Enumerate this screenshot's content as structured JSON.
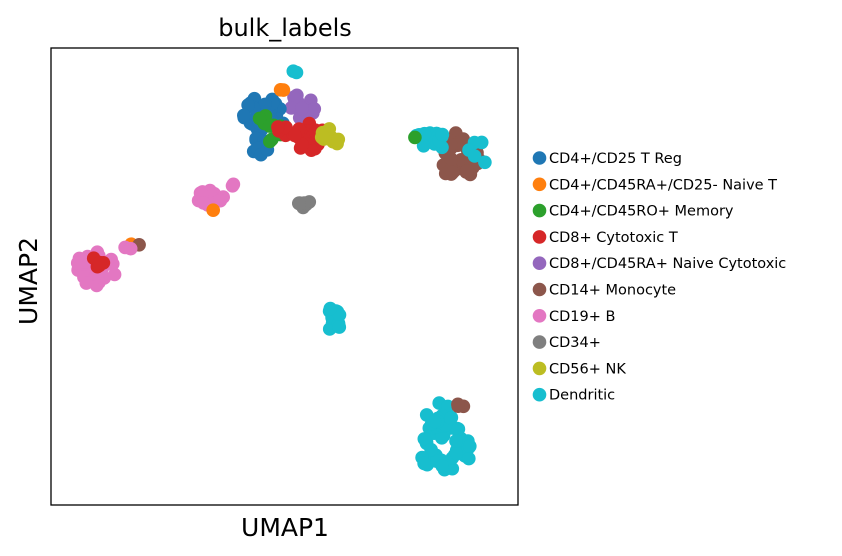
{
  "chart_data": {
    "type": "scatter",
    "title": "bulk_labels",
    "xlabel": "UMAP1",
    "ylabel": "UMAP2",
    "xlim": [
      0,
      100
    ],
    "ylim": [
      0,
      100
    ],
    "ticks": "none",
    "grid": false,
    "legend_position": "right",
    "categories": [
      {
        "name": "CD4+/CD25 T Reg",
        "color": "#1f77b4"
      },
      {
        "name": "CD4+/CD45RA+/CD25- Naive T",
        "color": "#ff7f0e"
      },
      {
        "name": "CD4+/CD45RO+ Memory",
        "color": "#2ca02c"
      },
      {
        "name": "CD8+ Cytotoxic T",
        "color": "#d62728"
      },
      {
        "name": "CD8+/CD45RA+ Naive Cytotoxic",
        "color": "#9467bd"
      },
      {
        "name": "CD14+ Monocyte",
        "color": "#8c564b"
      },
      {
        "name": "CD19+ B",
        "color": "#e377c2"
      },
      {
        "name": "CD34+",
        "color": "#7f7f7f"
      },
      {
        "name": "CD56+ NK",
        "color": "#bcbd22"
      },
      {
        "name": "Dendritic",
        "color": "#17becf"
      }
    ],
    "clusters": [
      {
        "category": 4,
        "cx": 53,
        "cy": 87,
        "rx": 3.5,
        "ry": 3.0,
        "n": 18
      },
      {
        "category": 0,
        "cx": 45.5,
        "cy": 85.5,
        "rx": 5.0,
        "ry": 4.5,
        "n": 26
      },
      {
        "category": 0,
        "cx": 44.5,
        "cy": 78.5,
        "rx": 2.5,
        "ry": 2.2,
        "n": 12
      },
      {
        "category": 2,
        "cx": 46.5,
        "cy": 82.5,
        "rx": 4.0,
        "ry": 3.0,
        "n": 10
      },
      {
        "category": 3,
        "cx": 55.5,
        "cy": 80.5,
        "rx": 3.0,
        "ry": 3.5,
        "n": 18
      },
      {
        "category": 3,
        "cx": 50.5,
        "cy": 82.0,
        "rx": 3.0,
        "ry": 2.0,
        "n": 8
      },
      {
        "category": 8,
        "cx": 60.0,
        "cy": 81.0,
        "rx": 2.2,
        "ry": 2.8,
        "n": 12
      },
      {
        "category": 1,
        "cx": 49.5,
        "cy": 91.0,
        "rx": 0.8,
        "ry": 0.8,
        "n": 2
      },
      {
        "category": 9,
        "cx": 52.0,
        "cy": 94.5,
        "rx": 0.8,
        "ry": 0.5,
        "n": 2
      },
      {
        "category": 7,
        "cx": 54.2,
        "cy": 66.0,
        "rx": 1.2,
        "ry": 1.0,
        "n": 7
      },
      {
        "category": 6,
        "cx": 34.0,
        "cy": 67.0,
        "rx": 3.0,
        "ry": 2.0,
        "n": 16
      },
      {
        "category": 6,
        "cx": 39.0,
        "cy": 70.0,
        "rx": 0.8,
        "ry": 0.8,
        "n": 2
      },
      {
        "category": 1,
        "cx": 34.5,
        "cy": 64.5,
        "rx": 0.5,
        "ry": 0.5,
        "n": 1
      },
      {
        "category": 6,
        "cx": 9.5,
        "cy": 52.0,
        "rx": 4.5,
        "ry": 4.0,
        "n": 30
      },
      {
        "category": 3,
        "cx": 10.0,
        "cy": 53.5,
        "rx": 1.5,
        "ry": 1.5,
        "n": 5
      },
      {
        "category": 1,
        "cx": 17.5,
        "cy": 57.0,
        "rx": 0.4,
        "ry": 0.4,
        "n": 1
      },
      {
        "category": 5,
        "cx": 18.8,
        "cy": 56.8,
        "rx": 0.4,
        "ry": 0.4,
        "n": 1
      },
      {
        "category": 6,
        "cx": 16.5,
        "cy": 56.5,
        "rx": 0.8,
        "ry": 0.6,
        "n": 2
      },
      {
        "category": 9,
        "cx": 60.5,
        "cy": 40.5,
        "rx": 1.5,
        "ry": 3.5,
        "n": 12
      },
      {
        "category": 5,
        "cx": 87.0,
        "cy": 76.0,
        "rx": 5.0,
        "ry": 5.5,
        "n": 40
      },
      {
        "category": 9,
        "cx": 81.0,
        "cy": 79.0,
        "rx": 3.5,
        "ry": 4.0,
        "n": 14
      },
      {
        "category": 9,
        "cx": 91.5,
        "cy": 77.0,
        "rx": 2.5,
        "ry": 2.5,
        "n": 5
      },
      {
        "category": 2,
        "cx": 77.5,
        "cy": 80.5,
        "rx": 0.5,
        "ry": 0.5,
        "n": 1
      },
      {
        "category": 9,
        "cx": 84.0,
        "cy": 12.5,
        "rx": 6.5,
        "ry": 5.0,
        "n": 45
      },
      {
        "category": 9,
        "cx": 83.0,
        "cy": 20.0,
        "rx": 3.0,
        "ry": 3.0,
        "n": 12
      },
      {
        "category": 5,
        "cx": 87.5,
        "cy": 21.0,
        "rx": 1.0,
        "ry": 1.5,
        "n": 3
      }
    ]
  }
}
